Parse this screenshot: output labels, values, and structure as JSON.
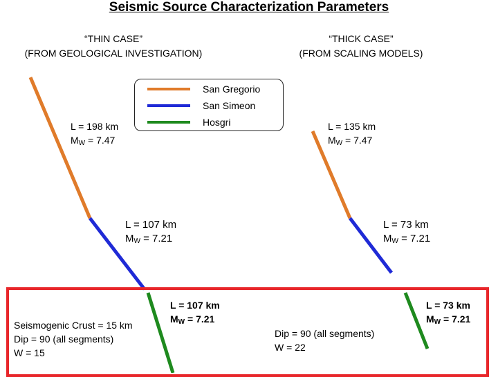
{
  "title": "Seismic Source Characterization Parameters",
  "thin_case": {
    "line1": "“THIN CASE”",
    "line2": "(FROM GEOLOGICAL INVESTIGATION)"
  },
  "thick_case": {
    "line1": "“THICK CASE”",
    "line2": "(FROM SCALING MODELS)"
  },
  "legend": [
    {
      "name": "San Gregorio",
      "color": "#e07b2a"
    },
    {
      "name": "San Simeon",
      "color": "#1f2ad6"
    },
    {
      "name": "Hosgri",
      "color": "#1e8a1e"
    }
  ],
  "labels": {
    "thin_sg": {
      "L": "L = 198 km",
      "M": "M",
      "sub": "W",
      "Mval": " = 7.47"
    },
    "thin_ss": {
      "L": "L = 107 km",
      "M": "M",
      "sub": "W",
      "Mval": " = 7.21"
    },
    "thin_h": {
      "L": "L = 107 km",
      "M": "M",
      "sub": "W",
      "Mval": " = 7.21"
    },
    "thick_sg": {
      "L": "L = 135 km",
      "M": "M",
      "sub": "W",
      "Mval": " = 7.47"
    },
    "thick_ss": {
      "L": "L = 73 km",
      "M": "M",
      "sub": "W",
      "Mval": " = 7.21"
    },
    "thick_h": {
      "L": "L = 73 km",
      "M": "M",
      "sub": "W",
      "Mval": " = 7.21"
    }
  },
  "thin_params": [
    "Seismogenic Crust = 15 km",
    "Dip = 90 (all segments)",
    "W = 15"
  ],
  "thick_params": [
    "Dip = 90 (all segments)",
    "W = 22"
  ]
}
